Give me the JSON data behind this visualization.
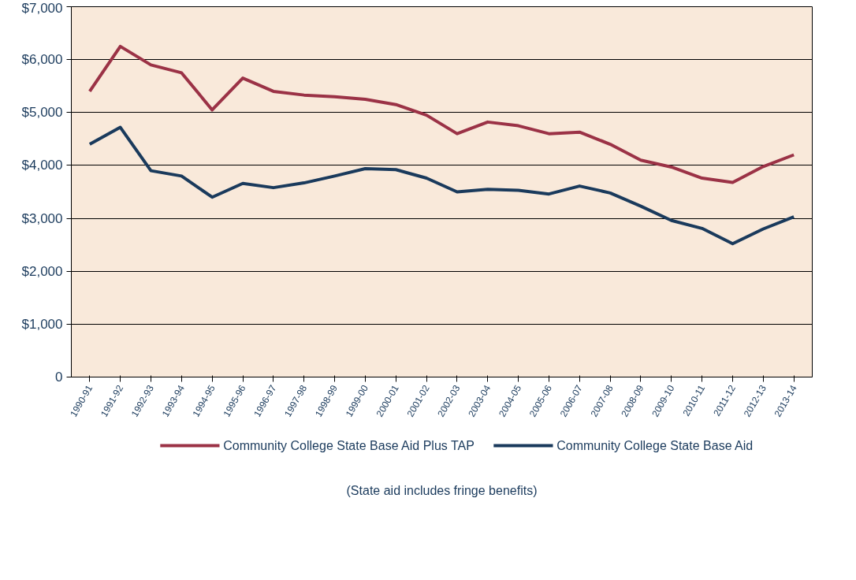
{
  "chart_data": {
    "type": "line",
    "categories": [
      "1990-91",
      "1991-92",
      "1992-93",
      "1993-94",
      "1994-95",
      "1995-96",
      "1996-97",
      "1997-98",
      "1998-99",
      "1999-00",
      "2000-01",
      "2001-02",
      "2002-03",
      "2003-04",
      "2004-05",
      "2005-06",
      "2006-07",
      "2007-08",
      "2008-09",
      "2009-10",
      "2010-11",
      "2011-12",
      "2012-13",
      "2013-14"
    ],
    "series": [
      {
        "name": "Community College State Base Aid Plus TAP",
        "color": "#9b3246",
        "values": [
          5400,
          6250,
          5900,
          5750,
          5050,
          5650,
          5400,
          5330,
          5300,
          5250,
          5150,
          4950,
          4600,
          4820,
          4750,
          4600,
          4630,
          4400,
          4100,
          3970,
          3760,
          3680,
          3980,
          4200
        ]
      },
      {
        "name": "Community College State Base Aid",
        "color": "#1a3a5c",
        "values": [
          4400,
          4720,
          3900,
          3800,
          3400,
          3660,
          3580,
          3670,
          3800,
          3940,
          3920,
          3760,
          3500,
          3550,
          3530,
          3460,
          3610,
          3480,
          3230,
          2960,
          2810,
          2520,
          2800,
          3030
        ]
      }
    ],
    "ylim": [
      0,
      7000
    ],
    "yticks": [
      0,
      {
        "value": 1000,
        "label": "$1,000"
      },
      {
        "value": 2000,
        "label": "$2,000"
      },
      {
        "value": 3000,
        "label": "$3,000"
      },
      {
        "value": 4000,
        "label": "$4,000"
      },
      {
        "value": 5000,
        "label": "$5,000"
      },
      {
        "value": 6000,
        "label": "$6,000"
      },
      {
        "value": 7000,
        "label": "$7,000"
      }
    ],
    "grid": "y",
    "legend": "bottom",
    "marker": "none",
    "line_style": "solid",
    "annotations": [
      "(State aid includes fringe benefits)"
    ]
  }
}
